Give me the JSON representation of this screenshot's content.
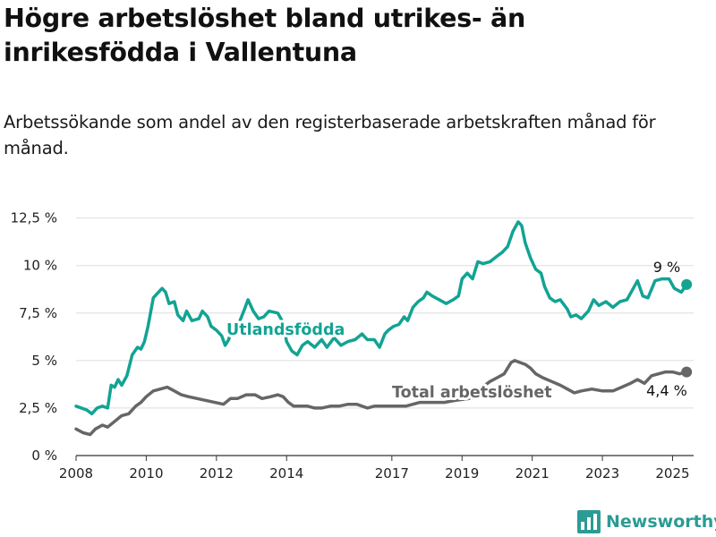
{
  "title": "Högre arbetslöshet bland utrikes- än inrikesfödda i Vallentuna",
  "subtitle": "Arbetssökande som andel av den registerbaserade arbetskraften månad för månad.",
  "brand": {
    "name": "Newsworthy",
    "icon": "bar-chart-logo-icon",
    "color": "#2b9c94"
  },
  "chart_data": {
    "type": "line",
    "y_ticks": [
      "0 %",
      "2,5 %",
      "5 %",
      "7,5 %",
      "10 %",
      "12,5 %"
    ],
    "y_tick_values": [
      0,
      2.5,
      5,
      7.5,
      10,
      12.5
    ],
    "x_ticks": [
      "2008",
      "2010",
      "2012",
      "2014",
      "2017",
      "2019",
      "2021",
      "2023",
      "2025"
    ],
    "x_tick_values": [
      2008,
      2010,
      2012,
      2014,
      2017,
      2019,
      2021,
      2023,
      2025
    ],
    "xlim": [
      2008,
      2025.6
    ],
    "ylim": [
      0,
      13
    ],
    "grid": "horizontal",
    "series": [
      {
        "name": "Utlandsfödda",
        "color": "#12a393",
        "end_label": "9 %",
        "points": [
          [
            2008.0,
            2.6
          ],
          [
            2008.3,
            2.4
          ],
          [
            2008.45,
            2.2
          ],
          [
            2008.6,
            2.5
          ],
          [
            2008.75,
            2.6
          ],
          [
            2008.9,
            2.5
          ],
          [
            2009.0,
            3.7
          ],
          [
            2009.1,
            3.6
          ],
          [
            2009.2,
            4.0
          ],
          [
            2009.3,
            3.7
          ],
          [
            2009.45,
            4.2
          ],
          [
            2009.6,
            5.3
          ],
          [
            2009.75,
            5.7
          ],
          [
            2009.85,
            5.6
          ],
          [
            2009.95,
            6.0
          ],
          [
            2010.05,
            6.8
          ],
          [
            2010.2,
            8.3
          ],
          [
            2010.35,
            8.6
          ],
          [
            2010.45,
            8.8
          ],
          [
            2010.55,
            8.6
          ],
          [
            2010.65,
            8.0
          ],
          [
            2010.8,
            8.1
          ],
          [
            2010.9,
            7.4
          ],
          [
            2011.05,
            7.1
          ],
          [
            2011.15,
            7.6
          ],
          [
            2011.3,
            7.1
          ],
          [
            2011.5,
            7.2
          ],
          [
            2011.6,
            7.6
          ],
          [
            2011.75,
            7.3
          ],
          [
            2011.85,
            6.8
          ],
          [
            2012.0,
            6.6
          ],
          [
            2012.15,
            6.3
          ],
          [
            2012.25,
            5.8
          ],
          [
            2012.35,
            6.1
          ],
          [
            2012.45,
            6.8
          ],
          [
            2012.65,
            7.0
          ],
          [
            2012.8,
            7.7
          ],
          [
            2012.9,
            8.2
          ],
          [
            2013.05,
            7.6
          ],
          [
            2013.2,
            7.2
          ],
          [
            2013.35,
            7.3
          ],
          [
            2013.5,
            7.6
          ],
          [
            2013.75,
            7.5
          ],
          [
            2013.9,
            7.0
          ],
          [
            2014.0,
            6.0
          ],
          [
            2014.15,
            5.5
          ],
          [
            2014.3,
            5.3
          ],
          [
            2014.45,
            5.8
          ],
          [
            2014.6,
            6.0
          ],
          [
            2014.8,
            5.7
          ],
          [
            2015.0,
            6.1
          ],
          [
            2015.15,
            5.7
          ],
          [
            2015.35,
            6.2
          ],
          [
            2015.55,
            5.8
          ],
          [
            2015.75,
            6.0
          ],
          [
            2015.95,
            6.1
          ],
          [
            2016.15,
            6.4
          ],
          [
            2016.3,
            6.1
          ],
          [
            2016.5,
            6.1
          ],
          [
            2016.65,
            5.7
          ],
          [
            2016.8,
            6.4
          ],
          [
            2016.9,
            6.6
          ],
          [
            2017.05,
            6.8
          ],
          [
            2017.2,
            6.9
          ],
          [
            2017.35,
            7.3
          ],
          [
            2017.45,
            7.1
          ],
          [
            2017.6,
            7.8
          ],
          [
            2017.75,
            8.1
          ],
          [
            2017.9,
            8.3
          ],
          [
            2018.0,
            8.6
          ],
          [
            2018.15,
            8.4
          ],
          [
            2018.35,
            8.2
          ],
          [
            2018.55,
            8.0
          ],
          [
            2018.75,
            8.2
          ],
          [
            2018.9,
            8.4
          ],
          [
            2019.0,
            9.3
          ],
          [
            2019.15,
            9.6
          ],
          [
            2019.3,
            9.3
          ],
          [
            2019.45,
            10.2
          ],
          [
            2019.6,
            10.1
          ],
          [
            2019.8,
            10.2
          ],
          [
            2020.0,
            10.5
          ],
          [
            2020.15,
            10.7
          ],
          [
            2020.3,
            11.0
          ],
          [
            2020.45,
            11.8
          ],
          [
            2020.6,
            12.3
          ],
          [
            2020.7,
            12.1
          ],
          [
            2020.8,
            11.2
          ],
          [
            2020.95,
            10.4
          ],
          [
            2021.1,
            9.8
          ],
          [
            2021.25,
            9.6
          ],
          [
            2021.35,
            8.9
          ],
          [
            2021.5,
            8.3
          ],
          [
            2021.65,
            8.1
          ],
          [
            2021.8,
            8.2
          ],
          [
            2022.0,
            7.7
          ],
          [
            2022.1,
            7.3
          ],
          [
            2022.25,
            7.4
          ],
          [
            2022.4,
            7.2
          ],
          [
            2022.6,
            7.6
          ],
          [
            2022.75,
            8.2
          ],
          [
            2022.9,
            7.9
          ],
          [
            2023.1,
            8.1
          ],
          [
            2023.3,
            7.8
          ],
          [
            2023.5,
            8.1
          ],
          [
            2023.7,
            8.2
          ],
          [
            2023.85,
            8.7
          ],
          [
            2024.0,
            9.2
          ],
          [
            2024.15,
            8.4
          ],
          [
            2024.3,
            8.3
          ],
          [
            2024.5,
            9.2
          ],
          [
            2024.7,
            9.3
          ],
          [
            2024.9,
            9.3
          ],
          [
            2025.05,
            8.8
          ],
          [
            2025.25,
            8.6
          ],
          [
            2025.4,
            9.0
          ]
        ]
      },
      {
        "name": "Total arbetslöshet",
        "color": "#666666",
        "end_label": "4,4 %",
        "points": [
          [
            2008.0,
            1.4
          ],
          [
            2008.2,
            1.2
          ],
          [
            2008.4,
            1.1
          ],
          [
            2008.55,
            1.4
          ],
          [
            2008.75,
            1.6
          ],
          [
            2008.9,
            1.5
          ],
          [
            2009.1,
            1.8
          ],
          [
            2009.3,
            2.1
          ],
          [
            2009.5,
            2.2
          ],
          [
            2009.7,
            2.6
          ],
          [
            2009.85,
            2.8
          ],
          [
            2010.0,
            3.1
          ],
          [
            2010.2,
            3.4
          ],
          [
            2010.4,
            3.5
          ],
          [
            2010.6,
            3.6
          ],
          [
            2010.8,
            3.4
          ],
          [
            2011.0,
            3.2
          ],
          [
            2011.2,
            3.1
          ],
          [
            2011.45,
            3.0
          ],
          [
            2011.7,
            2.9
          ],
          [
            2011.95,
            2.8
          ],
          [
            2012.2,
            2.7
          ],
          [
            2012.4,
            3.0
          ],
          [
            2012.6,
            3.0
          ],
          [
            2012.85,
            3.2
          ],
          [
            2013.1,
            3.2
          ],
          [
            2013.3,
            3.0
          ],
          [
            2013.55,
            3.1
          ],
          [
            2013.75,
            3.2
          ],
          [
            2013.9,
            3.1
          ],
          [
            2014.05,
            2.8
          ],
          [
            2014.2,
            2.6
          ],
          [
            2014.4,
            2.6
          ],
          [
            2014.6,
            2.6
          ],
          [
            2014.8,
            2.5
          ],
          [
            2015.0,
            2.5
          ],
          [
            2015.25,
            2.6
          ],
          [
            2015.5,
            2.6
          ],
          [
            2015.75,
            2.7
          ],
          [
            2016.0,
            2.7
          ],
          [
            2016.3,
            2.5
          ],
          [
            2016.5,
            2.6
          ],
          [
            2016.7,
            2.6
          ],
          [
            2017.0,
            2.6
          ],
          [
            2017.4,
            2.6
          ],
          [
            2017.8,
            2.8
          ],
          [
            2018.2,
            2.8
          ],
          [
            2018.5,
            2.8
          ],
          [
            2018.8,
            2.9
          ],
          [
            2019.2,
            3.0
          ],
          [
            2019.5,
            3.5
          ],
          [
            2019.8,
            3.9
          ],
          [
            2020.0,
            4.1
          ],
          [
            2020.2,
            4.3
          ],
          [
            2020.4,
            4.9
          ],
          [
            2020.5,
            5.0
          ],
          [
            2020.65,
            4.9
          ],
          [
            2020.8,
            4.8
          ],
          [
            2020.95,
            4.6
          ],
          [
            2021.1,
            4.3
          ],
          [
            2021.3,
            4.1
          ],
          [
            2021.55,
            3.9
          ],
          [
            2021.8,
            3.7
          ],
          [
            2022.0,
            3.5
          ],
          [
            2022.2,
            3.3
          ],
          [
            2022.4,
            3.4
          ],
          [
            2022.7,
            3.5
          ],
          [
            2023.0,
            3.4
          ],
          [
            2023.3,
            3.4
          ],
          [
            2023.55,
            3.6
          ],
          [
            2023.8,
            3.8
          ],
          [
            2024.0,
            4.0
          ],
          [
            2024.2,
            3.8
          ],
          [
            2024.4,
            4.2
          ],
          [
            2024.6,
            4.3
          ],
          [
            2024.8,
            4.4
          ],
          [
            2025.0,
            4.4
          ],
          [
            2025.2,
            4.3
          ],
          [
            2025.4,
            4.4
          ]
        ]
      }
    ]
  }
}
